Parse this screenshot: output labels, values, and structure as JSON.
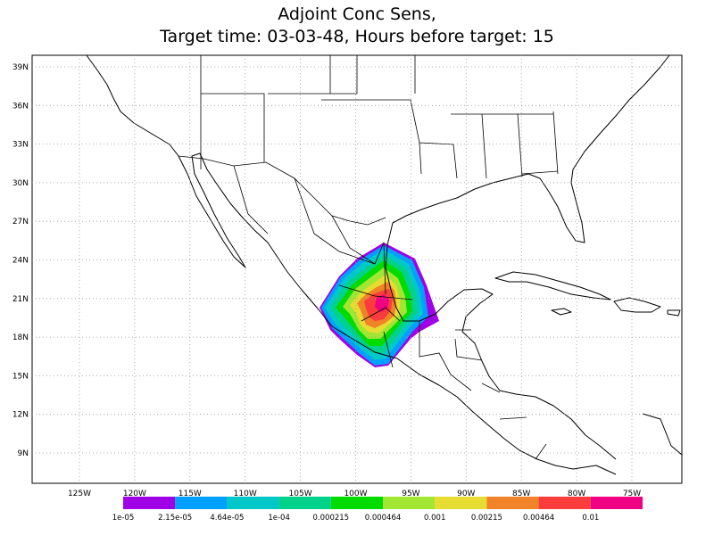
{
  "title": [
    "Adjoint Conc Sens,",
    "Target time: 03-03-48, Hours before target: 15"
  ],
  "lat_labels": [
    "39N",
    "36N",
    "33N",
    "30N",
    "27N",
    "24N",
    "21N",
    "18N",
    "15N",
    "12N",
    "9N"
  ],
  "lon_labels": [
    "125W",
    "120W",
    "115W",
    "110W",
    "105W",
    "100W",
    "95W",
    "90W",
    "85W",
    "80W",
    "75W"
  ],
  "colorbar": {
    "labels": [
      "1e-05",
      "2.15e-05",
      "4.64e-05",
      "1e-04",
      "0.000215",
      "0.000464",
      "0.001",
      "0.00215",
      "0.00464",
      "0.01"
    ]
  }
}
